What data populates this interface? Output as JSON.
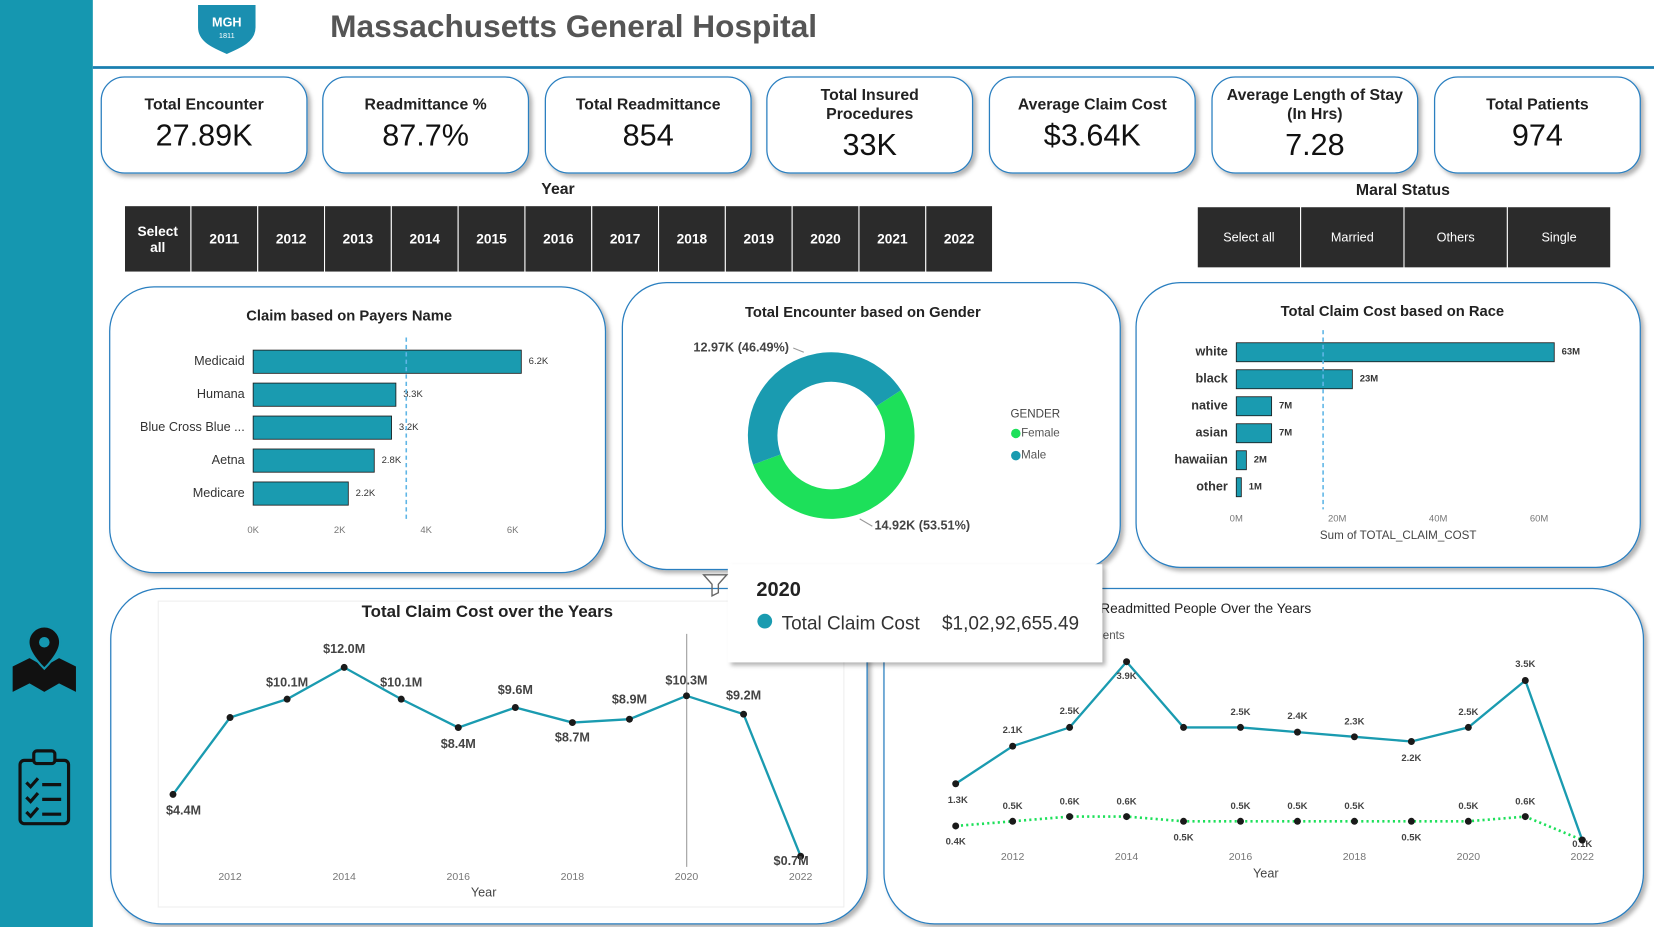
{
  "header": {
    "title": "Massachusetts General Hospital",
    "logo": {
      "text": "MGH",
      "year": "1811"
    }
  },
  "kpis": [
    {
      "title": "Total Encounter",
      "value": "27.89K"
    },
    {
      "title": "Readmittance %",
      "value": "87.7%"
    },
    {
      "title": "Total Readmittance",
      "value": "854"
    },
    {
      "title": "Total Insured Procedures",
      "value": "33K"
    },
    {
      "title": "Average Claim Cost",
      "value": "$3.64K"
    },
    {
      "title": "Average Length of Stay (In Hrs)",
      "value": "7.28"
    },
    {
      "title": "Total Patients",
      "value": "974"
    }
  ],
  "year_slicer": {
    "title": "Year",
    "options": [
      "Select all",
      "2011",
      "2012",
      "2013",
      "2014",
      "2015",
      "2016",
      "2017",
      "2018",
      "2019",
      "2020",
      "2021",
      "2022"
    ]
  },
  "marital_slicer": {
    "title": "Maral Status",
    "options": [
      "Select all",
      "Married",
      "Others",
      "Single"
    ]
  },
  "tooltip": {
    "title": "2020",
    "label": "Total Claim Cost",
    "value": "$1,02,92,655.49"
  },
  "chart_data": [
    {
      "type": "bar",
      "orientation": "horizontal",
      "title": "Claim based on Payers Name",
      "categories": [
        "Medicaid",
        "Humana",
        "Blue Cross Blue ...",
        "Aetna",
        "Medicare"
      ],
      "values": [
        6200,
        3300,
        3200,
        2800,
        2200
      ],
      "value_labels": [
        "6.2K",
        "3.3K",
        "3.2K",
        "2.8K",
        "2.2K"
      ],
      "color": "#1a9bb0",
      "xlim": [
        0,
        6400
      ],
      "xticks": [
        {
          "value": 0,
          "label": "0K"
        },
        {
          "value": 2000,
          "label": "2K"
        },
        {
          "value": 4000,
          "label": "4K"
        },
        {
          "value": 6000,
          "label": "6K"
        }
      ],
      "reference_line": 3540
    },
    {
      "type": "pie",
      "donut": true,
      "title": "Total Encounter based on Gender",
      "legend_title": "GENDER",
      "categories": [
        "Female",
        "Male"
      ],
      "values": [
        14920,
        12970
      ],
      "value_labels": [
        "14.92K (53.51%)",
        "12.97K (46.49%)"
      ],
      "colors": [
        "#1de05a",
        "#1a9bb0"
      ]
    },
    {
      "type": "bar",
      "orientation": "horizontal",
      "title": "Total Claim Cost based on Race",
      "categories": [
        "white",
        "black",
        "native",
        "asian",
        "hawaiian",
        "other"
      ],
      "values": [
        63000000,
        23000000,
        7000000,
        7000000,
        2000000,
        1000000
      ],
      "value_labels": [
        "63M",
        "23M",
        "7M",
        "7M",
        "2M",
        "1M"
      ],
      "color": "#1a9bb0",
      "xlim": [
        0,
        65000000
      ],
      "xticks": [
        {
          "value": 0,
          "label": "0M"
        },
        {
          "value": 20000000,
          "label": "20M"
        },
        {
          "value": 40000000,
          "label": "40M"
        },
        {
          "value": 60000000,
          "label": "60M"
        }
      ],
      "xlabel": "Sum of TOTAL_CLAIM_COST",
      "reference_line": 17200000
    },
    {
      "type": "line",
      "title": "Total Claim Cost over the Years",
      "xlabel": "Year",
      "x": [
        2011,
        2012,
        2013,
        2014,
        2015,
        2016,
        2017,
        2018,
        2019,
        2020,
        2021,
        2022
      ],
      "xlim": [
        2011,
        2022
      ],
      "xticks": [
        2012,
        2014,
        2016,
        2018,
        2020,
        2022
      ],
      "ylim": [
        0,
        13000000
      ],
      "series": [
        {
          "color": "#1a9bb0",
          "values": [
            4400000,
            9000000,
            10100000,
            12000000,
            10100000,
            8400000,
            9600000,
            8700000,
            8900000,
            10300000,
            9200000,
            700000
          ],
          "value_labels": [
            "$4.4M",
            null,
            "$10.1M",
            "$12.0M",
            "$10.1M",
            "$8.4M",
            "$9.6M",
            "$8.7M",
            "$8.9M",
            "$10.3M",
            "$9.2M",
            "$0.7M"
          ]
        }
      ]
    },
    {
      "type": "line",
      "title": "Readmitted People Over the Years",
      "legend_fragment": "ients",
      "xlabel": "Year",
      "x": [
        2011,
        2012,
        2013,
        2014,
        2015,
        2016,
        2017,
        2018,
        2019,
        2020,
        2021,
        2022
      ],
      "xlim": [
        2011,
        2022
      ],
      "xticks": [
        2012,
        2014,
        2016,
        2018,
        2020,
        2022
      ],
      "ylim": [
        0,
        4000
      ],
      "series": [
        {
          "color": "#1a9bb0",
          "style": "solid",
          "values": [
            1300,
            2100,
            2500,
            3900,
            2500,
            2500,
            2400,
            2300,
            2200,
            2500,
            3500,
            100
          ],
          "value_labels": [
            "1.3K",
            "2.1K",
            "2.5K",
            "3.9K",
            null,
            "2.5K",
            "2.4K",
            "2.3K",
            "2.2K",
            "2.5K",
            "3.5K",
            "0.1K"
          ]
        },
        {
          "color": "#1de05a",
          "style": "dotted",
          "values": [
            400,
            500,
            600,
            600,
            500,
            500,
            500,
            500,
            500,
            500,
            600,
            100
          ],
          "value_labels": [
            "0.4K",
            "0.5K",
            "0.6K",
            "0.6K",
            "0.5K",
            "0.5K",
            "0.5K",
            "0.5K",
            "0.5K",
            "0.5K",
            "0.6K",
            null
          ]
        }
      ]
    }
  ]
}
